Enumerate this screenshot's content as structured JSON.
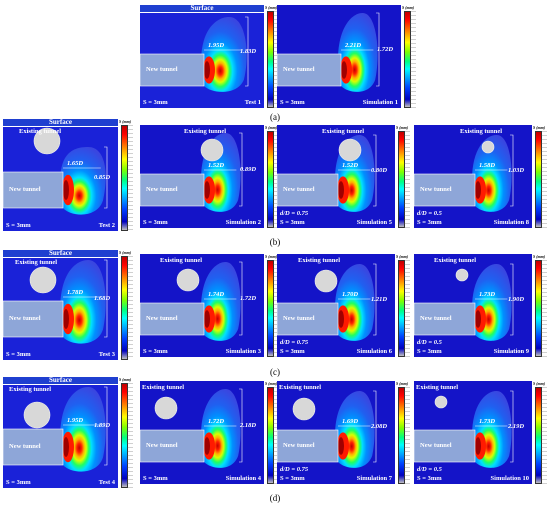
{
  "colorbar_unit": "S (mm)",
  "surface_label": "Surface",
  "new_tunnel_label": "New tunnel",
  "existing_tunnel_label": "Existing tunnel",
  "captions": [
    "(a)",
    "(b)",
    "(c)",
    "(d)"
  ],
  "panels": [
    {
      "id": "a1",
      "s_label": "S = 3mm",
      "name": "Test 1",
      "ann": [
        "1.95D",
        "1.83D"
      ],
      "ratio": ""
    },
    {
      "id": "a2",
      "s_label": "S = 3mm",
      "name": "Simulation 1",
      "ann": [
        "2.21D",
        "1.72D"
      ],
      "ratio": ""
    },
    {
      "id": "b1",
      "s_label": "S = 3mm",
      "name": "Test 2",
      "ann": [
        "1.65D",
        "0.85D"
      ],
      "ratio": ""
    },
    {
      "id": "b2",
      "s_label": "S = 3mm",
      "name": "Simulation 2",
      "ann": [
        "1.52D",
        "0.89D"
      ],
      "ratio": ""
    },
    {
      "id": "b3",
      "s_label": "S = 3mm",
      "name": "Simulation 5",
      "ann": [
        "1.52D",
        "0.80D"
      ],
      "ratio": "d/D = 0.75"
    },
    {
      "id": "b4",
      "s_label": "S = 3mm",
      "name": "Simulation 8",
      "ann": [
        "1.58D",
        "1.03D"
      ],
      "ratio": "d/D = 0.5"
    },
    {
      "id": "c1",
      "s_label": "S = 3mm",
      "name": "Test 3",
      "ann": [
        "1.78D",
        "1.68D"
      ],
      "ratio": ""
    },
    {
      "id": "c2",
      "s_label": "S = 3mm",
      "name": "Simulation 3",
      "ann": [
        "1.74D",
        "1.72D"
      ],
      "ratio": ""
    },
    {
      "id": "c3",
      "s_label": "S = 3mm",
      "name": "Simulation 6",
      "ann": [
        "1.70D",
        "1.21D"
      ],
      "ratio": "d/D = 0.75"
    },
    {
      "id": "c4",
      "s_label": "S = 3mm",
      "name": "Simulation 9",
      "ann": [
        "1.73D",
        "1.90D"
      ],
      "ratio": "d/D = 0.5"
    },
    {
      "id": "d1",
      "s_label": "S = 3mm",
      "name": "Test 4",
      "ann": [
        "1.95D",
        "1.89D"
      ],
      "ratio": ""
    },
    {
      "id": "d2",
      "s_label": "S = 3mm",
      "name": "Simulation 4",
      "ann": [
        "1.72D",
        "2.18D"
      ],
      "ratio": ""
    },
    {
      "id": "d3",
      "s_label": "S = 3mm",
      "name": "Simulation 7",
      "ann": [
        "1.69D",
        "2.08D"
      ],
      "ratio": "d/D = 0.75"
    },
    {
      "id": "d4",
      "s_label": "S = 3mm",
      "name": "Simulation 10",
      "ann": [
        "1.73D",
        "2.19D"
      ],
      "ratio": "d/D = 0.5"
    }
  ]
}
